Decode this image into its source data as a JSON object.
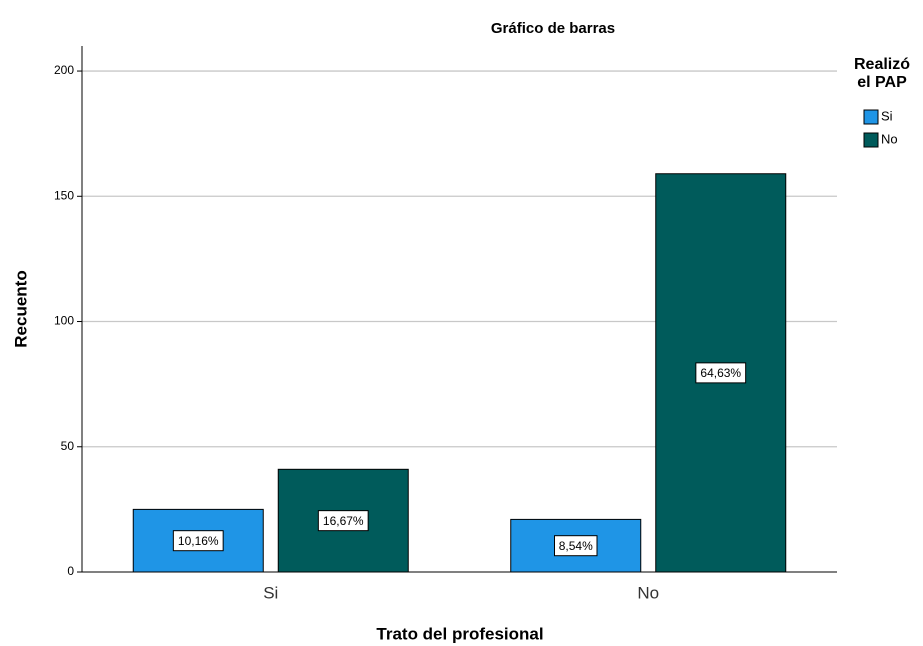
{
  "chart_data": {
    "type": "grouped_bar",
    "title": "Gráfico de barras",
    "x_label": "Trato del profesional",
    "y_label": "Recuento",
    "categories": [
      "Si",
      "No"
    ],
    "legend_title": [
      "Realizó",
      "el PAP"
    ],
    "legend": "right",
    "series": [
      {
        "name": "Si",
        "color": "#1f95e6",
        "values": [
          25,
          21
        ],
        "labels": [
          {
            "value": 10.16,
            "label": "10,16%"
          },
          {
            "value": 8.54,
            "label": "8,54%"
          }
        ]
      },
      {
        "name": "No",
        "color": "#005b5b",
        "values": [
          41,
          159
        ],
        "labels": [
          {
            "value": 16.67,
            "label": "16,67%"
          },
          {
            "value": 64.63,
            "label": "64,63%"
          }
        ]
      }
    ],
    "ylim": [
      0,
      210
    ],
    "yticks": [
      0,
      50,
      100,
      150,
      200
    ],
    "grid": true
  }
}
